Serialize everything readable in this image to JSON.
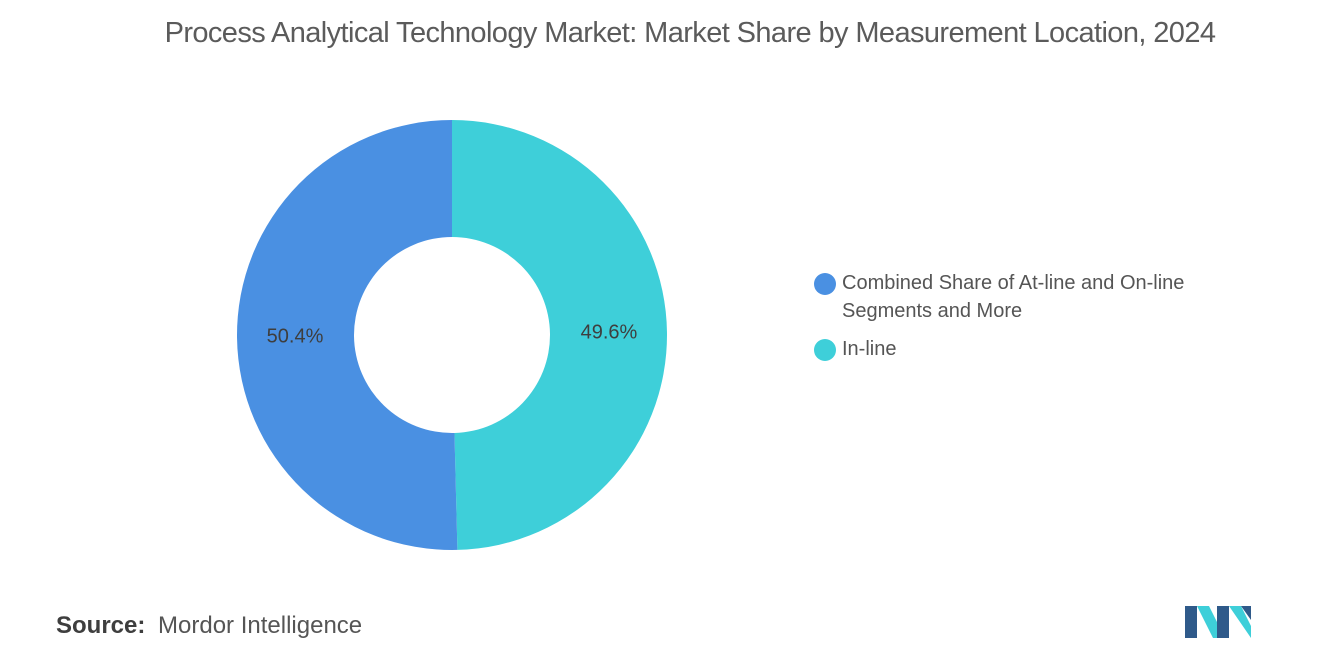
{
  "title": "Process Analytical Technology Market: Market Share by Measurement Location, 2024",
  "chart_data": {
    "type": "pie",
    "donut": true,
    "title": "Process Analytical Technology Market: Market Share by Measurement Location, 2024",
    "slices": [
      {
        "name": "In-line",
        "value": 49.6,
        "label": "49.6%",
        "color": "#3ecfd9"
      },
      {
        "name": "Combined Share of At-line and On-line Segments and More",
        "value": 50.4,
        "label": "50.4%",
        "color": "#4a90e2"
      }
    ],
    "legend_position": "right"
  },
  "legend": {
    "items": [
      {
        "label": "Combined Share of At-line and On-line Segments and More",
        "color": "#4a90e2"
      },
      {
        "label": "In-line",
        "color": "#3ecfd9"
      }
    ]
  },
  "footer": {
    "source_label": "Source:",
    "source_value": "Mordor Intelligence"
  },
  "logo": {
    "name": "mordor-intelligence-logo",
    "colors": [
      "#2f5a8a",
      "#3ecfd9"
    ]
  }
}
